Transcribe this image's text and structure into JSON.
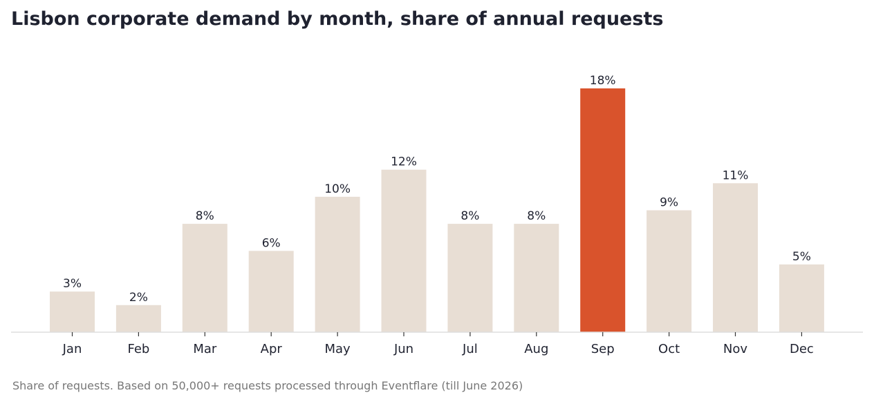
{
  "chart_data": {
    "type": "bar",
    "title": "Lisbon corporate demand by month, share of annual requests",
    "categories": [
      "Jan",
      "Feb",
      "Mar",
      "Apr",
      "May",
      "Jun",
      "Jul",
      "Aug",
      "Sep",
      "Oct",
      "Nov",
      "Dec"
    ],
    "values": [
      3,
      2,
      8,
      6,
      10,
      12,
      8,
      8,
      18,
      9,
      11,
      5
    ],
    "value_labels": [
      "3%",
      "2%",
      "8%",
      "6%",
      "10%",
      "12%",
      "8%",
      "8%",
      "18%",
      "9%",
      "11%",
      "5%"
    ],
    "highlight_category": "Sep",
    "xlabel": "",
    "ylabel": "",
    "ylim": [
      0,
      18
    ],
    "grid": false,
    "colors": {
      "bar": "#e8ded4",
      "highlight": "#d9532c",
      "axis": "#dddddd",
      "label_text": "#1f2230"
    }
  },
  "footnote": "Share of requests. Based on 50,000+ requests processed through Eventflare (till June 2026)"
}
